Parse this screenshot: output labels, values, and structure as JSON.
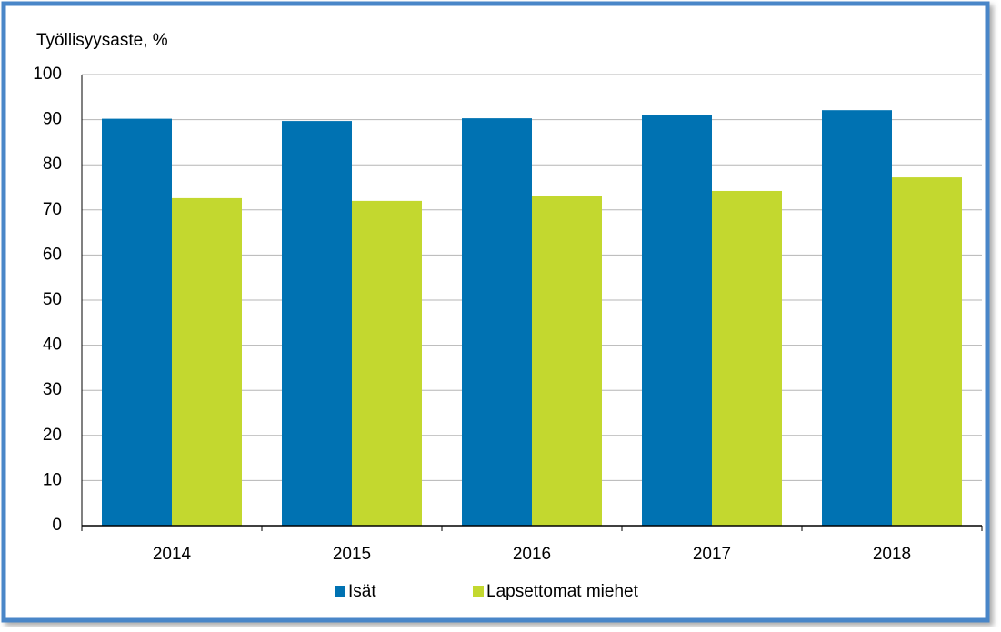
{
  "chart_data": {
    "type": "bar",
    "y_axis_label": "Työllisyysaste, %",
    "categories": [
      "2014",
      "2015",
      "2016",
      "2017",
      "2018"
    ],
    "series": [
      {
        "name": "Isät",
        "color": "#0072b2",
        "values": [
          90.2,
          89.7,
          90.3,
          91.1,
          92.1
        ]
      },
      {
        "name": "Lapsettomat miehet",
        "color": "#c3d82f",
        "values": [
          72.6,
          72.0,
          73.0,
          74.2,
          77.2
        ]
      }
    ],
    "ylim": [
      0,
      100
    ],
    "yticks": [
      0,
      10,
      20,
      30,
      40,
      50,
      60,
      70,
      80,
      90,
      100
    ],
    "grid": true,
    "legend": "bottom"
  }
}
